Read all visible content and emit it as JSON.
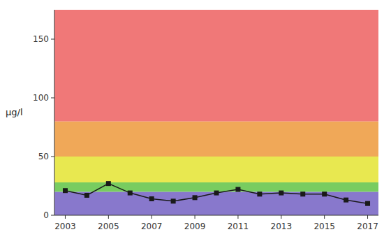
{
  "chart_data": {
    "type": "line",
    "ylabel": "μg/l",
    "x": [
      2003,
      2004,
      2005,
      2006,
      2007,
      2008,
      2009,
      2010,
      2011,
      2012,
      2013,
      2014,
      2015,
      2016,
      2017
    ],
    "values": [
      21,
      17,
      27,
      19,
      14,
      12,
      15,
      19,
      22,
      18,
      19,
      18,
      18,
      13,
      10
    ],
    "color": "#1a1a1a",
    "marker": "square",
    "xlim": [
      2002.5,
      2017.5
    ],
    "xticks": [
      2003,
      2005,
      2007,
      2009,
      2011,
      2013,
      2015,
      2017
    ],
    "ylim": [
      0,
      175
    ],
    "yticks": [
      0,
      50,
      100,
      150
    ],
    "bands": [
      {
        "from": 0,
        "to": 20,
        "color": "#8878cc"
      },
      {
        "from": 20,
        "to": 28,
        "color": "#78cc60"
      },
      {
        "from": 28,
        "to": 50,
        "color": "#e8e850"
      },
      {
        "from": 50,
        "to": 80,
        "color": "#f0a858"
      },
      {
        "from": 80,
        "to": 175,
        "color": "#f07878"
      }
    ]
  }
}
